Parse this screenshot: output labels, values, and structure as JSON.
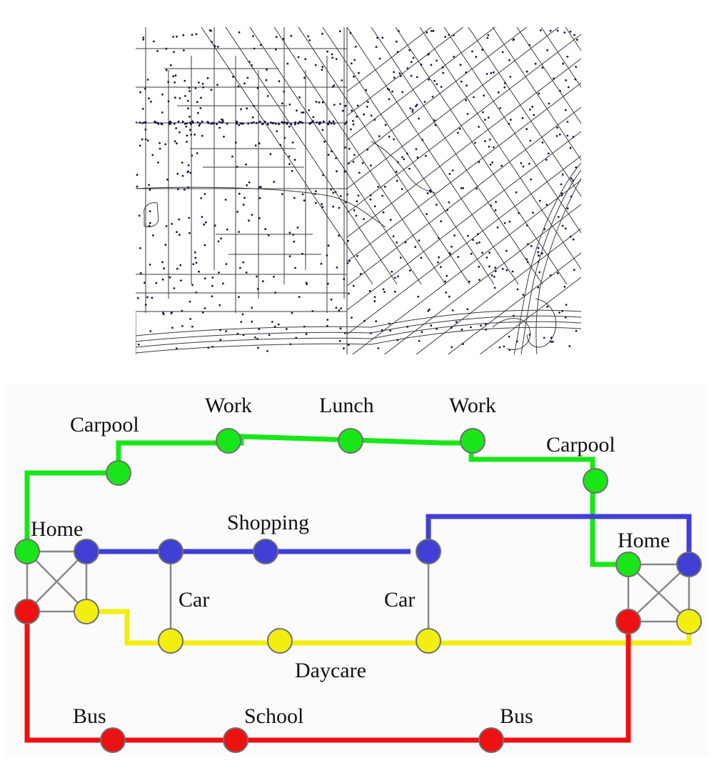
{
  "colors": {
    "work_chain": "#19e619",
    "shopping_chain": "#4040d6",
    "daycare_chain": "#f2ee10",
    "school_chain": "#ee1111",
    "household_link": "#888888",
    "map_street": "#3a3a3a",
    "map_point": "#16164a"
  },
  "diagram": {
    "labels": {
      "carpool_left": "Carpool",
      "work_1": "Work",
      "lunch": "Lunch",
      "work_2": "Work",
      "carpool_right": "Carpool",
      "home_left": "Home",
      "shopping": "Shopping",
      "home_right": "Home",
      "car_left": "Car",
      "car_right": "Car",
      "daycare": "Daycare",
      "bus_left": "Bus",
      "school": "School",
      "bus_right": "Bus"
    }
  }
}
